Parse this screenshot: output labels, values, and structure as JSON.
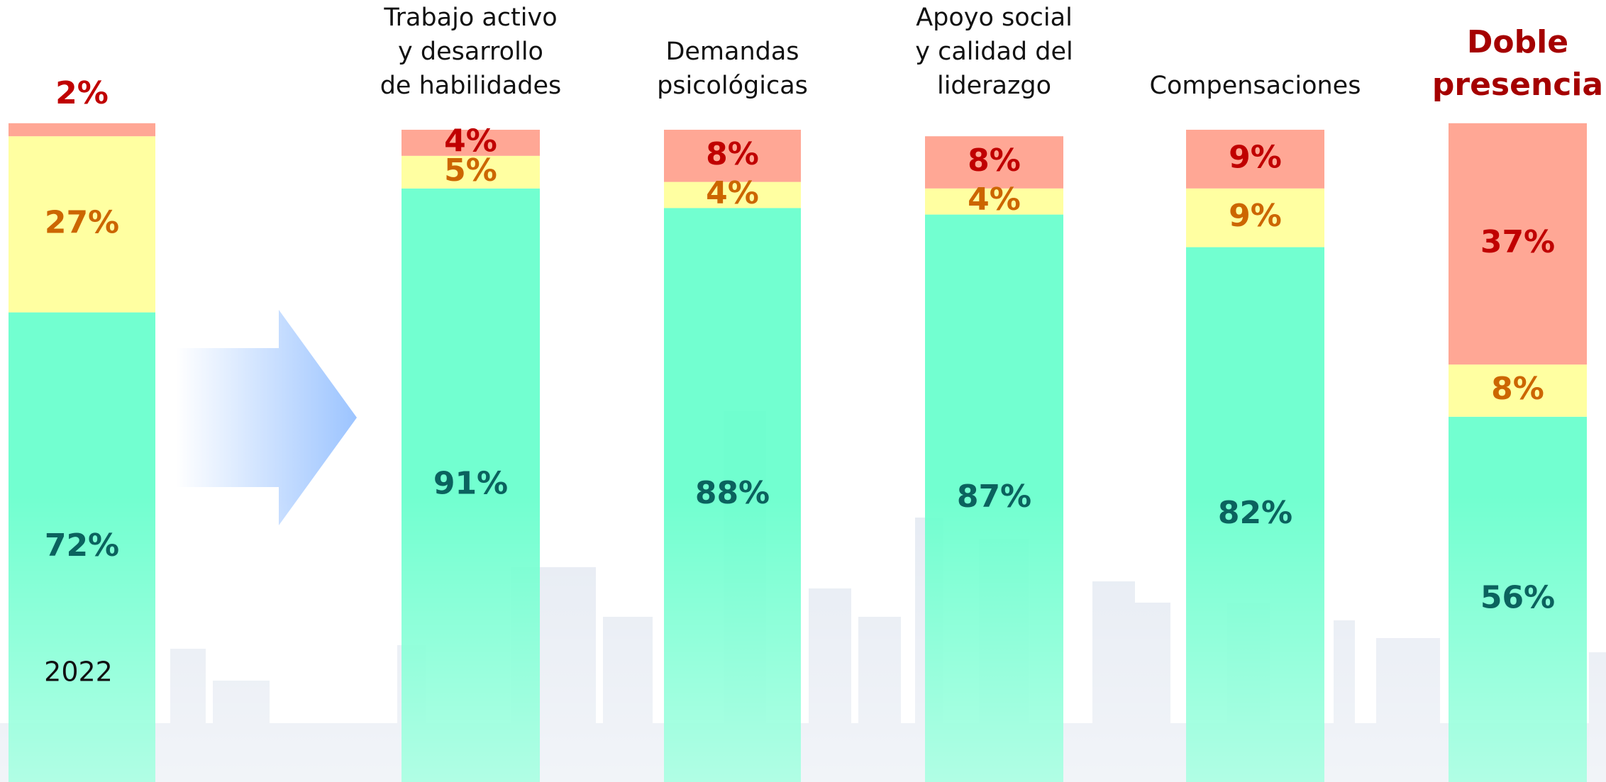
{
  "chart_data": {
    "type": "bar",
    "stacked": true,
    "categories": [
      "2022",
      "Trabajo activo\ny desarrollo\nde habilidades",
      "Demandas\npsicológicas",
      "Apoyo social\ny calidad del\nliderazgo",
      "Compensaciones",
      "Doble\npresencia"
    ],
    "category_label_colors": [
      "#111111",
      "#111111",
      "#111111",
      "#111111",
      "#111111",
      "#a50000"
    ],
    "ylim": [
      0,
      100
    ],
    "series": [
      {
        "color": "#66ffcc",
        "label_color": "#0b625e",
        "values": [
          72,
          91,
          88,
          87,
          82,
          56
        ],
        "value_labels": [
          "72%",
          "91%",
          "88%",
          "87%",
          "82%",
          "56%"
        ]
      },
      {
        "color": "#ffff99",
        "label_color": "#cc6600",
        "values": [
          27,
          5,
          4,
          4,
          9,
          8
        ],
        "value_labels": [
          "27%",
          "5%",
          "4%",
          "4%",
          "9%",
          "8%"
        ]
      },
      {
        "color": "#ffa08c",
        "label_color": "#c00000",
        "values": [
          2,
          4,
          8,
          8,
          9,
          37
        ],
        "value_labels": [
          "2%",
          "4%",
          "8%",
          "8%",
          "9%",
          "37%"
        ]
      }
    ]
  }
}
